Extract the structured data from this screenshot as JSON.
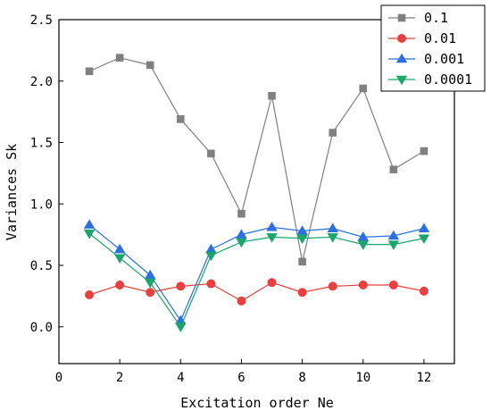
{
  "chart_data": {
    "type": "line",
    "xlabel": "Excitation order Ne",
    "ylabel": "Variances Sk",
    "xlim": [
      0,
      13
    ],
    "ylim": [
      -0.3,
      2.5
    ],
    "xticks": [
      0,
      2,
      4,
      6,
      8,
      10,
      12
    ],
    "xtick_labels": [
      "0",
      "2",
      "4",
      "6",
      "8",
      "10",
      "12"
    ],
    "yticks": [
      0.0,
      0.5,
      1.0,
      1.5,
      2.0,
      2.5
    ],
    "ytick_labels": [
      "0.0",
      "0.5",
      "1.0",
      "1.5",
      "2.0",
      "2.5"
    ],
    "grid": false,
    "legend_position": "top-right",
    "x": [
      1,
      2,
      3,
      4,
      5,
      6,
      7,
      8,
      9,
      10,
      11,
      12
    ],
    "series": [
      {
        "name": "0.1",
        "color": "#808080",
        "marker": "square",
        "values": [
          2.08,
          2.19,
          2.13,
          1.69,
          1.41,
          0.92,
          1.88,
          0.53,
          1.58,
          1.94,
          1.28,
          1.43
        ]
      },
      {
        "name": "0.01",
        "color": "#e84040",
        "marker": "circle",
        "values": [
          0.26,
          0.34,
          0.28,
          0.33,
          0.35,
          0.21,
          0.36,
          0.28,
          0.33,
          0.34,
          0.34,
          0.29
        ]
      },
      {
        "name": "0.001",
        "color": "#2d6fe0",
        "marker": "triangle-up",
        "values": [
          0.83,
          0.63,
          0.42,
          0.05,
          0.63,
          0.75,
          0.81,
          0.78,
          0.8,
          0.73,
          0.74,
          0.8
        ]
      },
      {
        "name": "0.0001",
        "color": "#1ba56b",
        "marker": "triangle-down",
        "values": [
          0.76,
          0.56,
          0.36,
          0.0,
          0.58,
          0.69,
          0.73,
          0.72,
          0.73,
          0.67,
          0.67,
          0.72
        ]
      }
    ]
  }
}
